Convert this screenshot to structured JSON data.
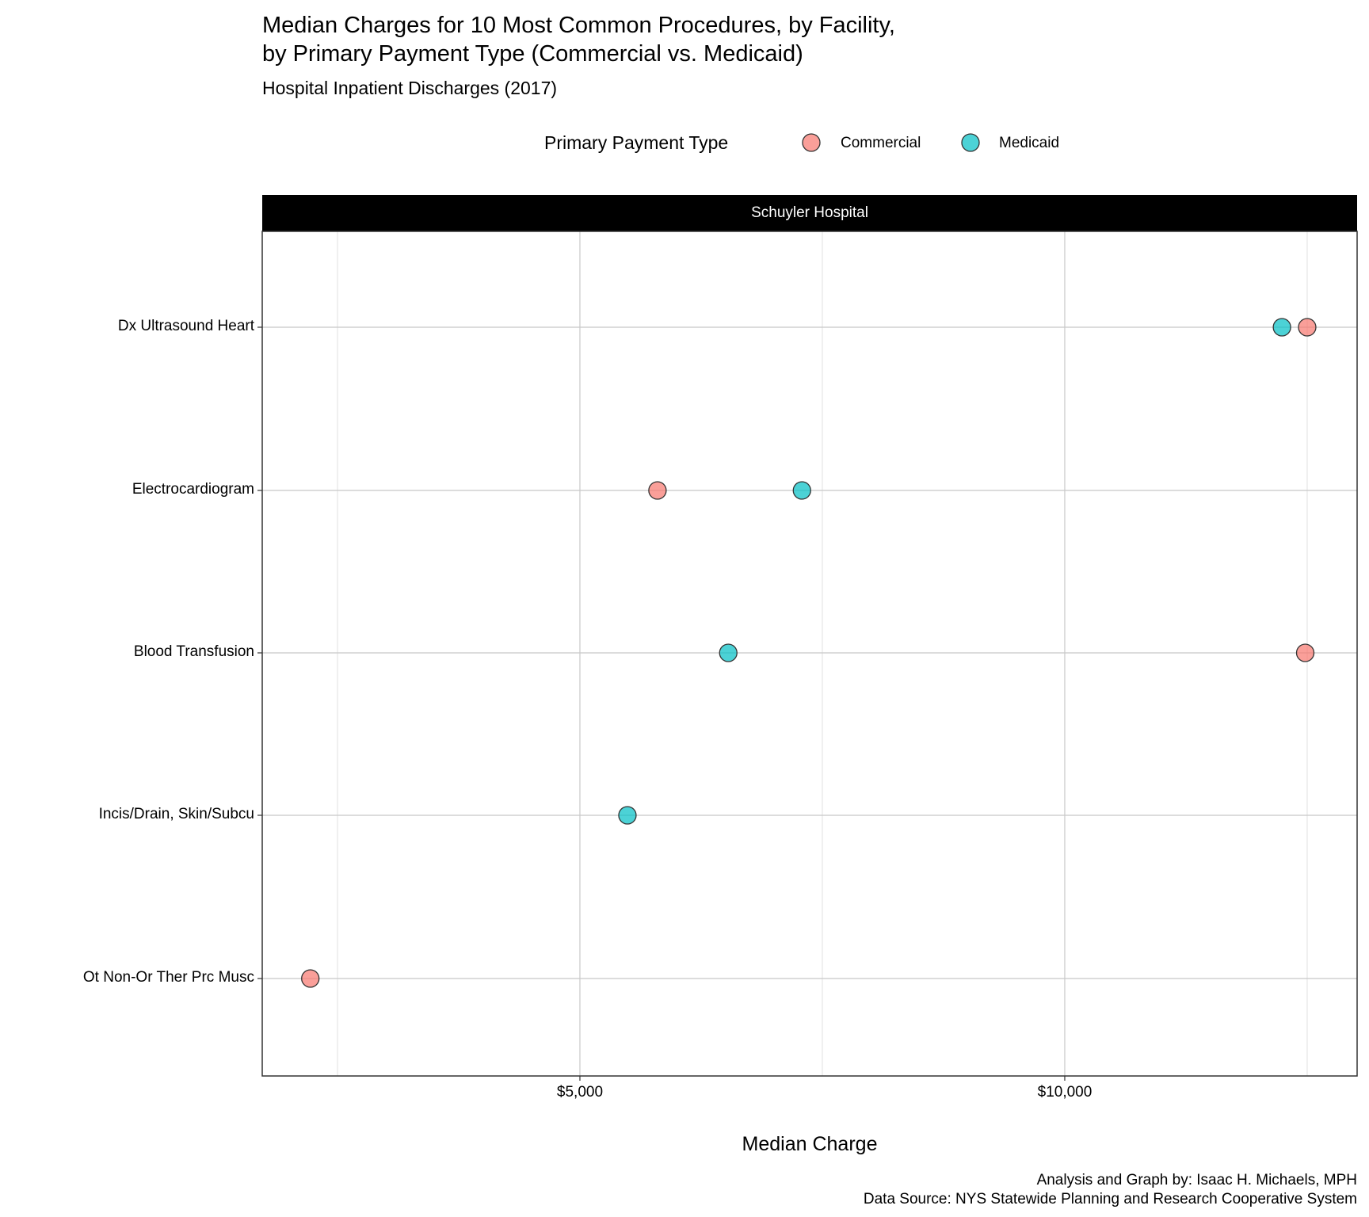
{
  "chart_data": {
    "type": "scatter",
    "title": "Median Charges for 10 Most Common Procedures, by Facility,\nby Primary Payment Type (Commercial vs. Medicaid)",
    "title_lines": [
      "Median Charges for 10 Most Common Procedures, by Facility,",
      "by Primary Payment Type (Commercial vs. Medicaid)"
    ],
    "subtitle": "Hospital Inpatient Discharges (2017)",
    "legend": {
      "title": "Primary Payment Type",
      "placement": "top",
      "entries": [
        {
          "name": "Commercial",
          "color": "#F8766D"
        },
        {
          "name": "Medicaid",
          "color": "#00BFC4"
        }
      ]
    },
    "facet": "Schuyler Hospital",
    "xlabel": "Median Charge",
    "ylabel": "",
    "xlim": [
      1724,
      13015
    ],
    "x_ticks": [
      {
        "value": 5000,
        "label": "$5,000"
      },
      {
        "value": 10000,
        "label": "$10,000"
      }
    ],
    "x_minor": [
      2500,
      7500,
      12500
    ],
    "categories": [
      "Dx Ultrasound Heart",
      "Electrocardiogram",
      "Blood Transfusion",
      "Incis/Drain, Skin/Subcu",
      "Ot Non-Or Ther Prc Musc"
    ],
    "series": [
      {
        "name": "Commercial",
        "values": [
          12500,
          5800,
          12480,
          null,
          2220
        ]
      },
      {
        "name": "Medicaid",
        "values": [
          12240,
          7290,
          6530,
          5490,
          null
        ]
      }
    ],
    "grid": true,
    "caption": [
      "Analysis and Graph by: Isaac H. Michaels, MPH",
      "Data Source: NYS Statewide Planning and Research Cooperative System"
    ]
  }
}
